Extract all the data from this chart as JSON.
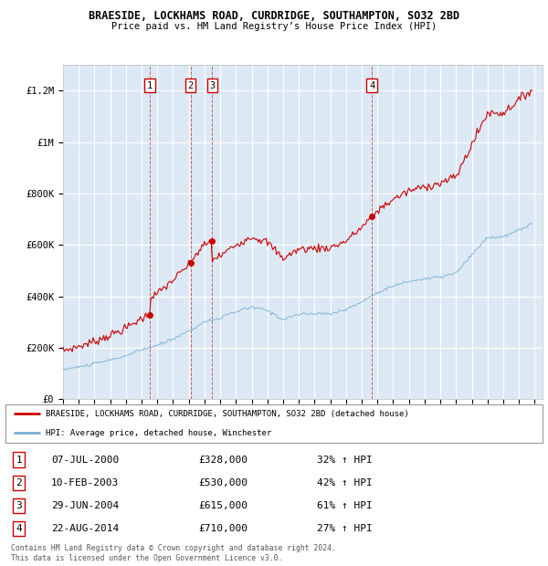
{
  "title": "BRAESIDE, LOCKHAMS ROAD, CURDRIDGE, SOUTHAMPTON, SO32 2BD",
  "subtitle": "Price paid vs. HM Land Registry’s House Price Index (HPI)",
  "ylabel_ticks": [
    "£0",
    "£200K",
    "£400K",
    "£600K",
    "£800K",
    "£1M",
    "£1.2M"
  ],
  "ytick_vals": [
    0,
    200000,
    400000,
    600000,
    800000,
    1000000,
    1200000
  ],
  "ylim": [
    0,
    1300000
  ],
  "xlim_start": 1995.0,
  "xlim_end": 2025.5,
  "background_color": "#dce9f5",
  "grid_color": "#ffffff",
  "red_color": "#cc0000",
  "blue_color": "#7bafd4",
  "transactions": [
    {
      "num": 1,
      "date_decimal": 2000.52,
      "price": 328000,
      "date_str": "07-JUL-2000",
      "hpi_pct": "32%"
    },
    {
      "num": 2,
      "date_decimal": 2003.11,
      "price": 530000,
      "date_str": "10-FEB-2003",
      "hpi_pct": "42%"
    },
    {
      "num": 3,
      "date_decimal": 2004.49,
      "price": 615000,
      "date_str": "29-JUN-2004",
      "hpi_pct": "61%"
    },
    {
      "num": 4,
      "date_decimal": 2014.64,
      "price": 710000,
      "date_str": "22-AUG-2014",
      "hpi_pct": "27%"
    }
  ],
  "legend_red_label": "BRAESIDE, LOCKHAMS ROAD, CURDRIDGE, SOUTHAMPTON, SO32 2BD (detached house)",
  "legend_blue_label": "HPI: Average price, detached house, Winchester",
  "footer": "Contains HM Land Registry data © Crown copyright and database right 2024.\nThis data is licensed under the Open Government Licence v3.0."
}
